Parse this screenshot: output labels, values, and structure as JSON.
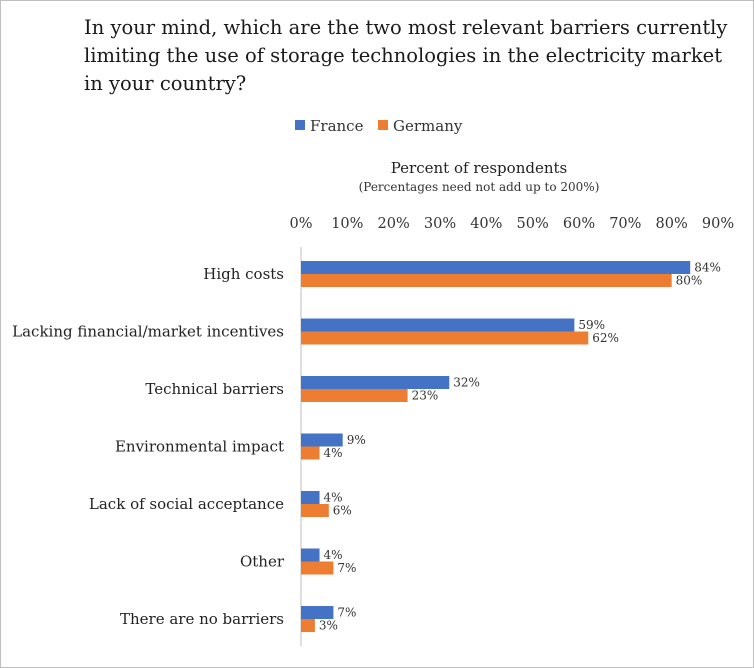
{
  "chart_data": {
    "type": "bar",
    "orientation": "horizontal",
    "title_lines": [
      "In your mind, which are the two most relevant barriers currently",
      "limiting the use of storage technologies in the electricity market",
      "in your country?"
    ],
    "xlabel": "Percent of respondents",
    "xlabel_note": "(Percentages need not add up to 200%)",
    "xlim": [
      0,
      90
    ],
    "xticks": [
      "0%",
      "10%",
      "20%",
      "30%",
      "40%",
      "50%",
      "60%",
      "70%",
      "80%",
      "90%"
    ],
    "legend_position": "top",
    "grid": false,
    "categories": [
      "High costs",
      "Lacking financial/market incentives",
      "Technical barriers",
      "Environmental impact",
      "Lack of social acceptance",
      "Other",
      "There are no barriers"
    ],
    "series": [
      {
        "name": "France",
        "color": "#4472c4",
        "values": [
          84,
          59,
          32,
          9,
          4,
          4,
          7
        ],
        "labels": [
          "84%",
          "59%",
          "32%",
          "9%",
          "4%",
          "4%",
          "7%"
        ]
      },
      {
        "name": "Germany",
        "color": "#ed7d31",
        "values": [
          80,
          62,
          23,
          4,
          6,
          7,
          3
        ],
        "labels": [
          "80%",
          "62%",
          "23%",
          "4%",
          "6%",
          "7%",
          "3%"
        ]
      }
    ]
  }
}
